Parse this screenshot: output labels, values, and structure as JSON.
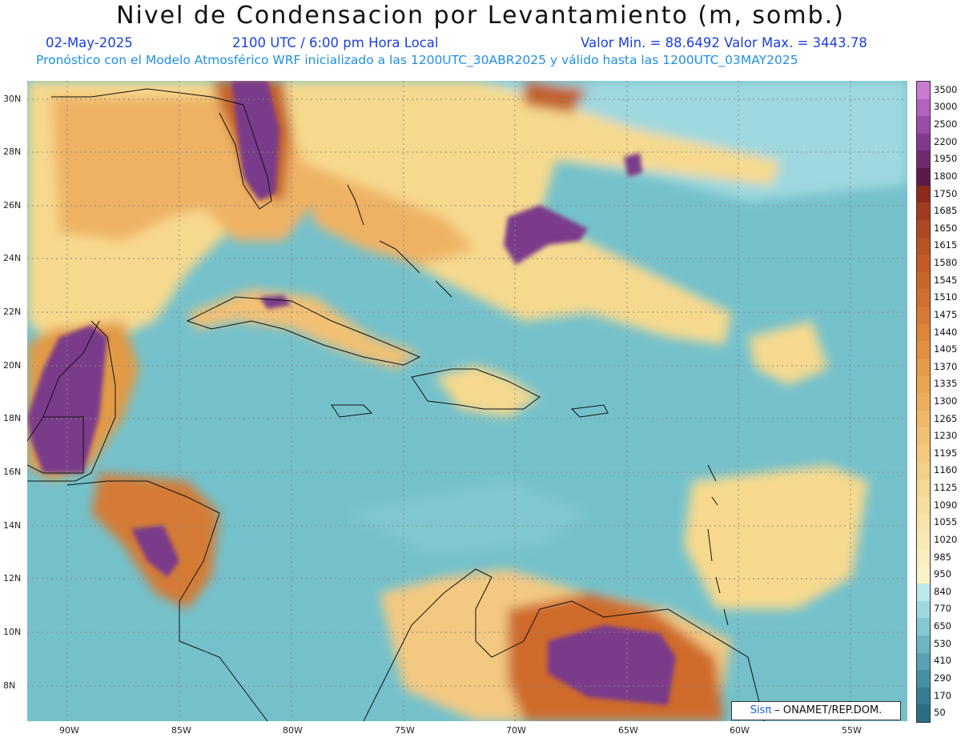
{
  "header": {
    "title": "Nivel de Condensacion por Levantamiento (m, somb.)",
    "date": "02-May-2025",
    "time": "2100 UTC / 6:00 pm Hora Local",
    "minmax": "Valor Min. = 88.6492   Valor Max. = 3443.78",
    "model_line": "Pronóstico con el Modelo Atmosférico WRF inicializado a las 1200UTC_30ABR2025 y válido hasta las  1200UTC_03MAY2025"
  },
  "axes": {
    "lat_labels": [
      "30N",
      "28N",
      "26N",
      "24N",
      "22N",
      "20N",
      "18N",
      "16N",
      "14N",
      "12N",
      "10N",
      "8N"
    ],
    "lat_values": [
      30,
      28,
      26,
      24,
      22,
      20,
      18,
      16,
      14,
      12,
      10,
      8
    ],
    "lon_labels": [
      "90W",
      "85W",
      "80W",
      "75W",
      "70W",
      "65W",
      "60W",
      "55W"
    ],
    "lon_values": [
      -90,
      -85,
      -80,
      -75,
      -70,
      -65,
      -60,
      -55
    ],
    "lon_range": [
      -91.8,
      -52.5
    ],
    "lat_range": [
      6.8,
      30.8
    ]
  },
  "legend": {
    "levels": [
      "3500",
      "3000",
      "2500",
      "2200",
      "1950",
      "1800",
      "1750",
      "1685",
      "1650",
      "1615",
      "1580",
      "1545",
      "1510",
      "1475",
      "1440",
      "1405",
      "1370",
      "1335",
      "1300",
      "1265",
      "1230",
      "1195",
      "1160",
      "1125",
      "1090",
      "1055",
      "1020",
      "985",
      "950",
      "840",
      "770",
      "650",
      "530",
      "410",
      "290",
      "170",
      "50"
    ],
    "colors": [
      "#c77ad0",
      "#b163be",
      "#9a4da6",
      "#823a8e",
      "#6e2a72",
      "#5a1b48",
      "#8c2b1c",
      "#a23a1f",
      "#b04722",
      "#bb5224",
      "#c45b27",
      "#cc652a",
      "#d26f2e",
      "#d87a33",
      "#dd8538",
      "#e1903f",
      "#e59b47",
      "#e8a552",
      "#ebaf5c",
      "#eeb867",
      "#f0c171",
      "#f2c97d",
      "#f4d188",
      "#f5d893",
      "#f6de9f",
      "#f7e4aa",
      "#f8eab6",
      "#f9eebf",
      "#faf2c8",
      "#bfe8ea",
      "#9fd9df",
      "#84c8d2",
      "#6cb6c4",
      "#58a2b4",
      "#4690a5",
      "#357e96",
      "#2a6e88"
    ]
  },
  "credit": {
    "brand": "Sisπ",
    "text": " – ONAMET/REP.DOM."
  }
}
